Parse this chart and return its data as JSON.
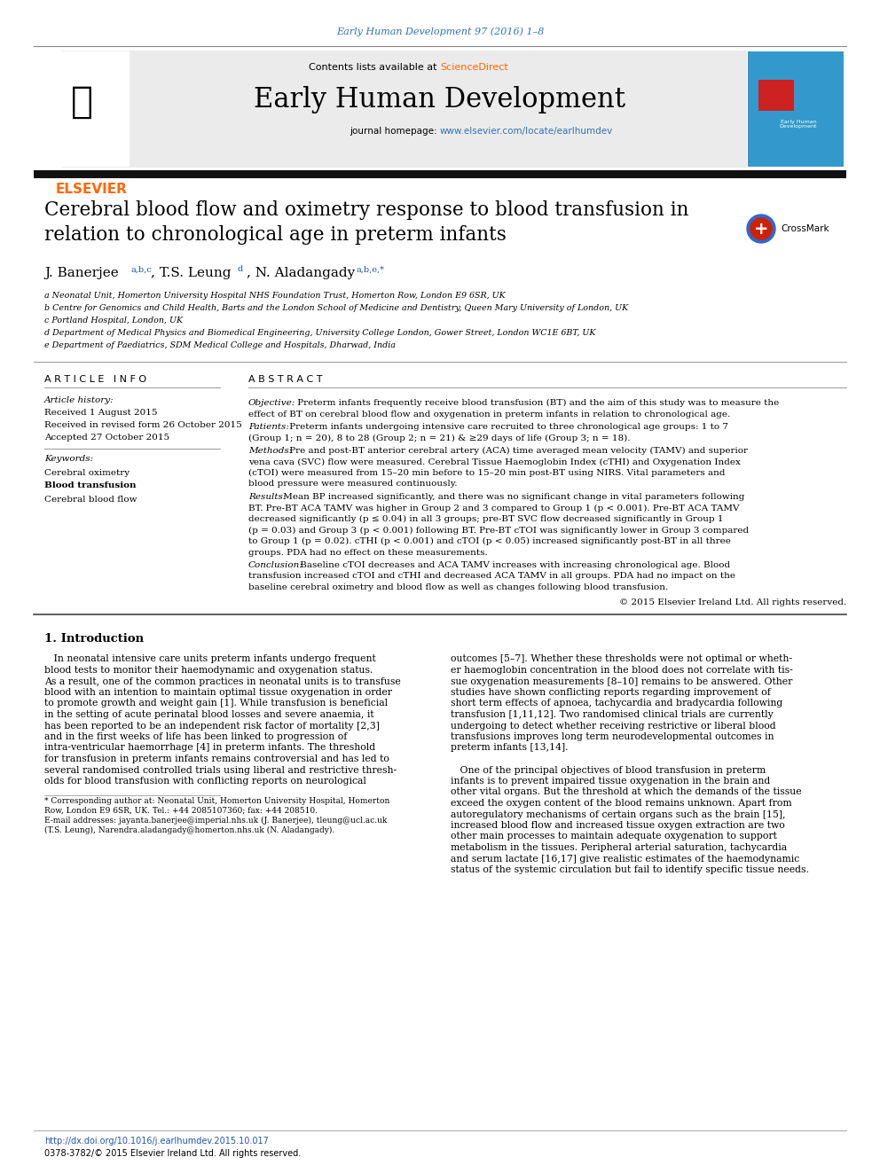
{
  "journal_line": "Early Human Development 97 (2016) 1–8",
  "journal_line_color": "#2E74B5",
  "contents_line": "Contents lists available at ",
  "sciencedirect_text": "ScienceDirect",
  "sciencedirect_color": "#FF6600",
  "journal_name": "Early Human Development",
  "journal_homepage_label": "journal homepage: ",
  "journal_homepage_url": "www.elsevier.com/locate/earlhumdev",
  "journal_homepage_url_color": "#2E74B5",
  "header_bg": "#EBEBEB",
  "article_info_header": "A R T I C L E   I N F O",
  "article_history_label": "Article history:",
  "received": "Received 1 August 2015",
  "revised": "Received in revised form 26 October 2015",
  "accepted": "Accepted 27 October 2015",
  "keywords_label": "Keywords:",
  "kw1": "Cerebral oximetry",
  "kw2": "Blood transfusion",
  "kw3": "Cerebral blood flow",
  "abstract_header": "A B S T R A C T",
  "objective_label": "Objective:",
  "patients_label": "Patients:",
  "methods_label": "Methods:",
  "results_label": "Results:",
  "conclusion_label": "Conclusion:",
  "copyright": "© 2015 Elsevier Ireland Ltd. All rights reserved.",
  "intro_header": "1. Introduction",
  "footer_doi": "http://dx.doi.org/10.1016/j.earlhumdev.2015.10.017",
  "footer_issn": "0378-3782/© 2015 Elsevier Ireland Ltd. All rights reserved.",
  "elsevier_color": "#FF6600",
  "link_blue": "#2255AA",
  "affil_blue": "#2255AA",
  "obj_lines": [
    " Preterm infants frequently receive blood transfusion (BT) and the aim of this study was to measure the",
    "effect of BT on cerebral blood flow and oxygenation in preterm infants in relation to chronological age."
  ],
  "pat_lines": [
    " Preterm infants undergoing intensive care recruited to three chronological age groups: 1 to 7",
    "(Group 1; n = 20), 8 to 28 (Group 2; n = 21) & ≥29 days of life (Group 3; n = 18)."
  ],
  "meth_lines": [
    " Pre and post-BT anterior cerebral artery (ACA) time averaged mean velocity (TAMV) and superior",
    "vena cava (SVC) flow were measured. Cerebral Tissue Haemoglobin Index (cTHI) and Oxygenation Index",
    "(cTOI) were measured from 15–20 min before to 15–20 min post-BT using NIRS. Vital parameters and",
    "blood pressure were measured continuously."
  ],
  "res_lines": [
    " Mean BP increased significantly, and there was no significant change in vital parameters following",
    "BT. Pre-BT ACA TAMV was higher in Group 2 and 3 compared to Group 1 (p < 0.001). Pre-BT ACA TAMV",
    "decreased significantly (p ≤ 0.04) in all 3 groups; pre-BT SVC flow decreased significantly in Group 1",
    "(p = 0.03) and Group 3 (p < 0.001) following BT. Pre-BT cTOI was significantly lower in Group 3 compared",
    "to Group 1 (p = 0.02). cTHI (p < 0.001) and cTOI (p < 0.05) increased significantly post-BT in all three",
    "groups. PDA had no effect on these measurements."
  ],
  "conc_lines": [
    " Baseline cTOI decreases and ACA TAMV increases with increasing chronological age. Blood",
    "transfusion increased cTOI and cTHI and decreased ACA TAMV in all groups. PDA had no impact on the",
    "baseline cerebral oximetry and blood flow as well as changes following blood transfusion."
  ],
  "intro_col1_lines": [
    "   In neonatal intensive care units preterm infants undergo frequent",
    "blood tests to monitor their haemodynamic and oxygenation status.",
    "As a result, one of the common practices in neonatal units is to transfuse",
    "blood with an intention to maintain optimal tissue oxygenation in order",
    "to promote growth and weight gain [1]. While transfusion is beneficial",
    "in the setting of acute perinatal blood losses and severe anaemia, it",
    "has been reported to be an independent risk factor of mortality [2,3]",
    "and in the first weeks of life has been linked to progression of",
    "intra-ventricular haemorrhage [4] in preterm infants. The threshold",
    "for transfusion in preterm infants remains controversial and has led to",
    "several randomised controlled trials using liberal and restrictive thresh-",
    "olds for blood transfusion with conflicting reports on neurological"
  ],
  "intro_col2_lines": [
    "outcomes [5–7]. Whether these thresholds were not optimal or wheth-",
    "er haemoglobin concentration in the blood does not correlate with tis-",
    "sue oxygenation measurements [8–10] remains to be answered. Other",
    "studies have shown conflicting reports regarding improvement of",
    "short term effects of apnoea, tachycardia and bradycardia following",
    "transfusion [1,11,12]. Two randomised clinical trials are currently",
    "undergoing to detect whether receiving restrictive or liberal blood",
    "transfusions improves long term neurodevelopmental outcomes in",
    "preterm infants [13,14].",
    "",
    "   One of the principal objectives of blood transfusion in preterm",
    "infants is to prevent impaired tissue oxygenation in the brain and",
    "other vital organs. But the threshold at which the demands of the tissue",
    "exceed the oxygen content of the blood remains unknown. Apart from",
    "autoregulatory mechanisms of certain organs such as the brain [15],",
    "increased blood flow and increased tissue oxygen extraction are two",
    "other main processes to maintain adequate oxygenation to support",
    "metabolism in the tissues. Peripheral arterial saturation, tachycardia",
    "and serum lactate [16,17] give realistic estimates of the haemodynamic",
    "status of the systemic circulation but fail to identify specific tissue needs."
  ],
  "footnote_lines": [
    "* Corresponding author at: Neonatal Unit, Homerton University Hospital, Homerton",
    "Row, London E9 6SR, UK. Tel.: +44 2085107360; fax: +44 208510.",
    "E-mail addresses: jayanta.banerjee@imperial.nhs.uk (J. Banerjee), tleung@ucl.ac.uk",
    "(T.S. Leung), Narendra.aladangady@homerton.nhs.uk (N. Aladangady)."
  ],
  "affil_a": "a Neonatal Unit, Homerton University Hospital NHS Foundation Trust, Homerton Row, London E9 6SR, UK",
  "affil_b": "b Centre for Genomics and Child Health, Barts and the London School of Medicine and Dentistry, Queen Mary University of London, UK",
  "affil_c": "c Portland Hospital, London, UK",
  "affil_d": "d Department of Medical Physics and Biomedical Engineering, University College London, Gower Street, London WC1E 6BT, UK",
  "affil_e": "e Department of Paediatrics, SDM Medical College and Hospitals, Dharwad, India"
}
